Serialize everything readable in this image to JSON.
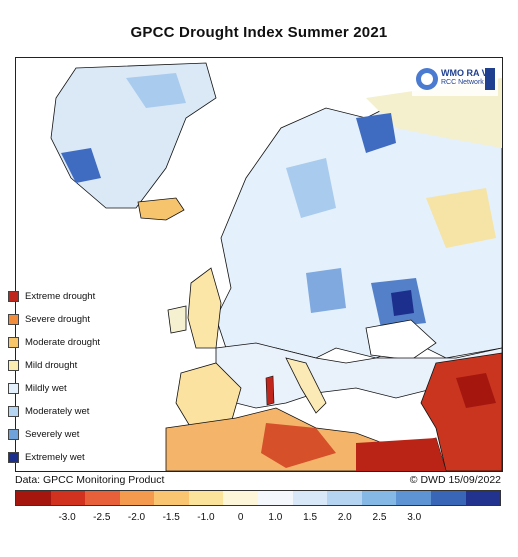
{
  "title": "GPCC Drought Index Summer 2021",
  "legend": [
    {
      "label": "Extreme drought",
      "color": "#c0261b"
    },
    {
      "label": "Severe drought",
      "color": "#f08c3c"
    },
    {
      "label": "Moderate drought",
      "color": "#f8c66a"
    },
    {
      "label": "Mild drought",
      "color": "#fbeeb0"
    },
    {
      "label": "Mildly wet",
      "color": "#e4f0fb"
    },
    {
      "label": "Moderately wet",
      "color": "#b6d5f2"
    },
    {
      "label": "Severely wet",
      "color": "#6fa2da"
    },
    {
      "label": "Extremely wet",
      "color": "#1c2f8c"
    }
  ],
  "logo": {
    "line1": "WMO RA VI",
    "line2": "RCC Network"
  },
  "footer": {
    "source": "Data: GPCC Monitoring Product",
    "credit": "© DWD 15/09/2022"
  },
  "colorbar": {
    "colors": [
      "#a5160f",
      "#d13220",
      "#e8603a",
      "#f49a4f",
      "#f9c571",
      "#fbe39c",
      "#fdf6d8",
      "#f4f8fd",
      "#d8e8f8",
      "#b4d4f1",
      "#86b8e6",
      "#5e93d4",
      "#3a66b8",
      "#22338f"
    ],
    "ticks": [
      "-3.0",
      "-2.5",
      "-2.0",
      "-1.5",
      "-1.0",
      "0",
      "1.0",
      "1.5",
      "2.0",
      "2.5",
      "3.0"
    ]
  }
}
